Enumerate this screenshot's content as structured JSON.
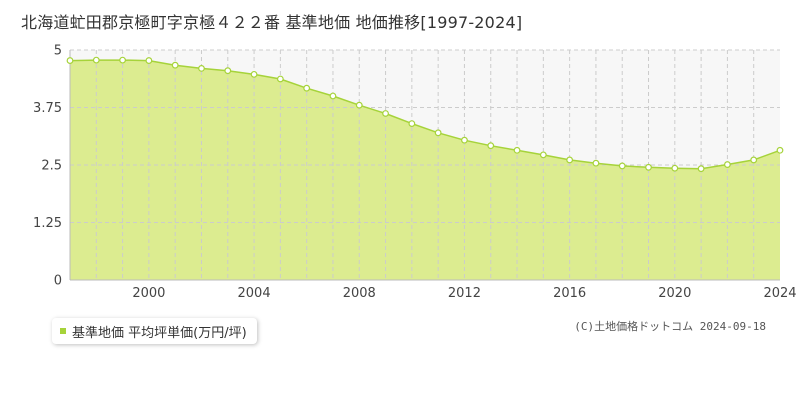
{
  "title": "北海道虻田郡京極町字京極４２２番 基準地価 地価推移[1997-2024]",
  "legend_label": "基準地価 平均坪単価(万円/坪)",
  "credit": "(C)土地価格ドットコム 2024-09-18",
  "colors": {
    "area_fill": "#dcec90",
    "line": "#a6d33a",
    "point_stroke": "#a6d33a",
    "point_fill": "#ffffff",
    "upper_band": "#f7f7f7",
    "grid": "#cccccc"
  },
  "chart_data": {
    "type": "area",
    "x": [
      1997,
      1998,
      1999,
      2000,
      2001,
      2002,
      2003,
      2004,
      2005,
      2006,
      2007,
      2008,
      2009,
      2010,
      2011,
      2012,
      2013,
      2014,
      2015,
      2016,
      2017,
      2018,
      2019,
      2020,
      2021,
      2022,
      2023,
      2024
    ],
    "series": [
      {
        "values": [
          4.77,
          4.78,
          4.78,
          4.77,
          4.67,
          4.6,
          4.55,
          4.47,
          4.37,
          4.17,
          4.0,
          3.8,
          3.62,
          3.4,
          3.2,
          3.04,
          2.92,
          2.82,
          2.72,
          2.61,
          2.54,
          2.48,
          2.45,
          2.43,
          2.42,
          2.51,
          2.61,
          2.82
        ]
      }
    ],
    "xlim": [
      1997,
      2024
    ],
    "ylim": [
      0,
      5
    ],
    "x_ticks": [
      "2000",
      "2004",
      "2008",
      "2012",
      "2016",
      "2020",
      "2024"
    ],
    "y_ticks": [
      "0",
      "1.25",
      "2.5",
      "3.75",
      "5"
    ],
    "grid": true
  }
}
